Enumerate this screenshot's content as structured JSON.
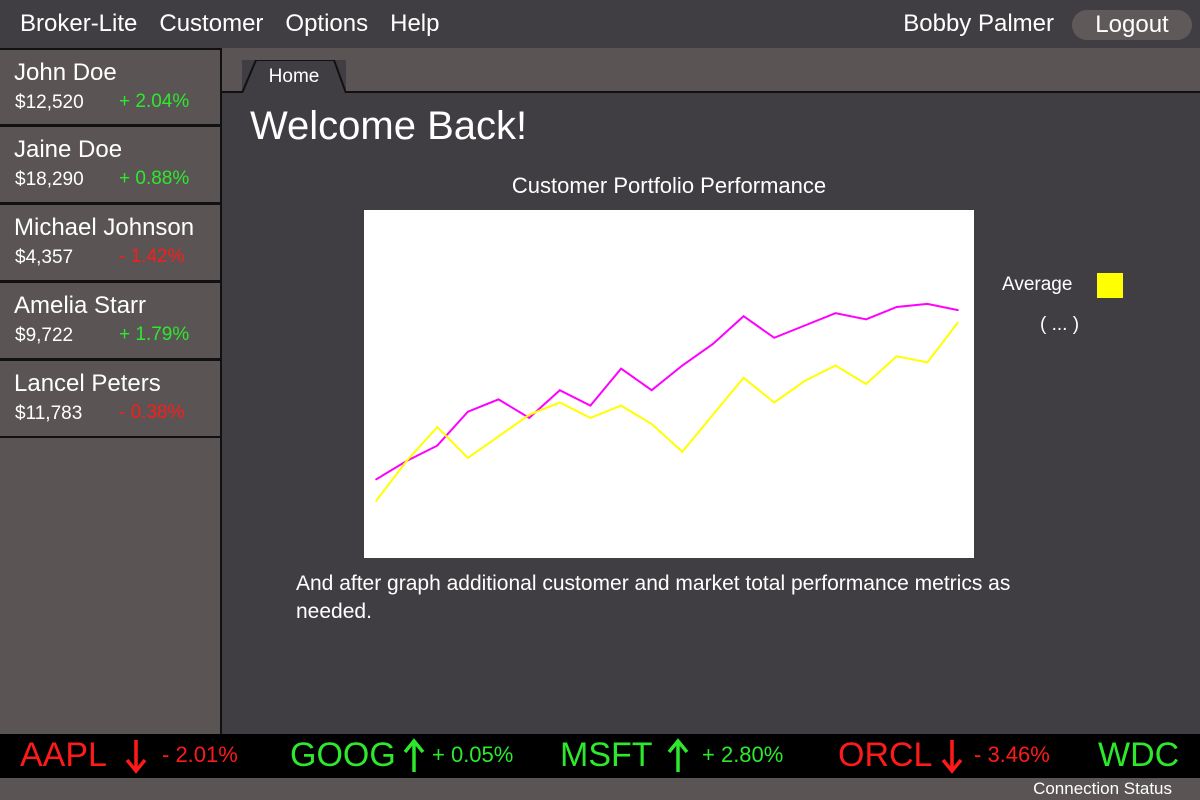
{
  "menu": {
    "items": [
      "Broker-Lite",
      "Customer",
      "Options",
      "Help"
    ],
    "user_name": "Bobby Palmer",
    "logout_label": "Logout"
  },
  "customers": [
    {
      "name": "John Doe",
      "value": "$12,520",
      "change": "+ 2.04%",
      "direction": "up"
    },
    {
      "name": "Jaine Doe",
      "value": "$18,290",
      "change": "+ 0.88%",
      "direction": "up"
    },
    {
      "name": "Michael Johnson",
      "value": "$4,357",
      "change": "- 1.42%",
      "direction": "down"
    },
    {
      "name": "Amelia Starr",
      "value": "$9,722",
      "change": "+ 1.79%",
      "direction": "up"
    },
    {
      "name": "Lancel Peters",
      "value": "$11,783",
      "change": "- 0.38%",
      "direction": "down"
    }
  ],
  "tabs": {
    "home_label": "Home"
  },
  "main": {
    "welcome": "Welcome Back!",
    "note": "And after graph additional customer and market total performance metrics as needed."
  },
  "chart_data": {
    "type": "line",
    "title": "Customer Portfolio Performance",
    "xlabel": "",
    "ylabel": "",
    "x": [
      1,
      2,
      3,
      4,
      5,
      6,
      7,
      8,
      9,
      10,
      11,
      12,
      13,
      14,
      15,
      16,
      17,
      18,
      19,
      20
    ],
    "ylim": [
      0,
      100
    ],
    "axes_visible": false,
    "series": [
      {
        "name": "",
        "color": "#ff00ff",
        "values": [
          19,
          25,
          30,
          41,
          45,
          39,
          48,
          43,
          55,
          48,
          56,
          63,
          72,
          65,
          69,
          73,
          71,
          75,
          76,
          74
        ]
      },
      {
        "name": "Average",
        "color": "#ffff00",
        "values": [
          12,
          25,
          36,
          26,
          33,
          40,
          44,
          39,
          43,
          37,
          28,
          40,
          52,
          44,
          51,
          56,
          50,
          59,
          57,
          70
        ]
      }
    ],
    "legend": {
      "entries": [
        "Average"
      ],
      "placement": "right",
      "more_label": "( ... )"
    }
  },
  "ticker": [
    {
      "symbol": "AAPL",
      "direction": "down",
      "change": "- 2.01%"
    },
    {
      "symbol": "GOOG",
      "direction": "up",
      "change": "+ 0.05%"
    },
    {
      "symbol": "MSFT",
      "direction": "up",
      "change": "+ 2.80%"
    },
    {
      "symbol": "ORCL",
      "direction": "down",
      "change": "- 3.46%"
    },
    {
      "symbol": "WDC",
      "direction": "up",
      "change": ""
    }
  ],
  "status": {
    "label": "Connection Status"
  },
  "colors": {
    "up": "#2ee82e",
    "down": "#ff1a1a",
    "series1": "#ff00ff",
    "series2": "#ffff00"
  }
}
